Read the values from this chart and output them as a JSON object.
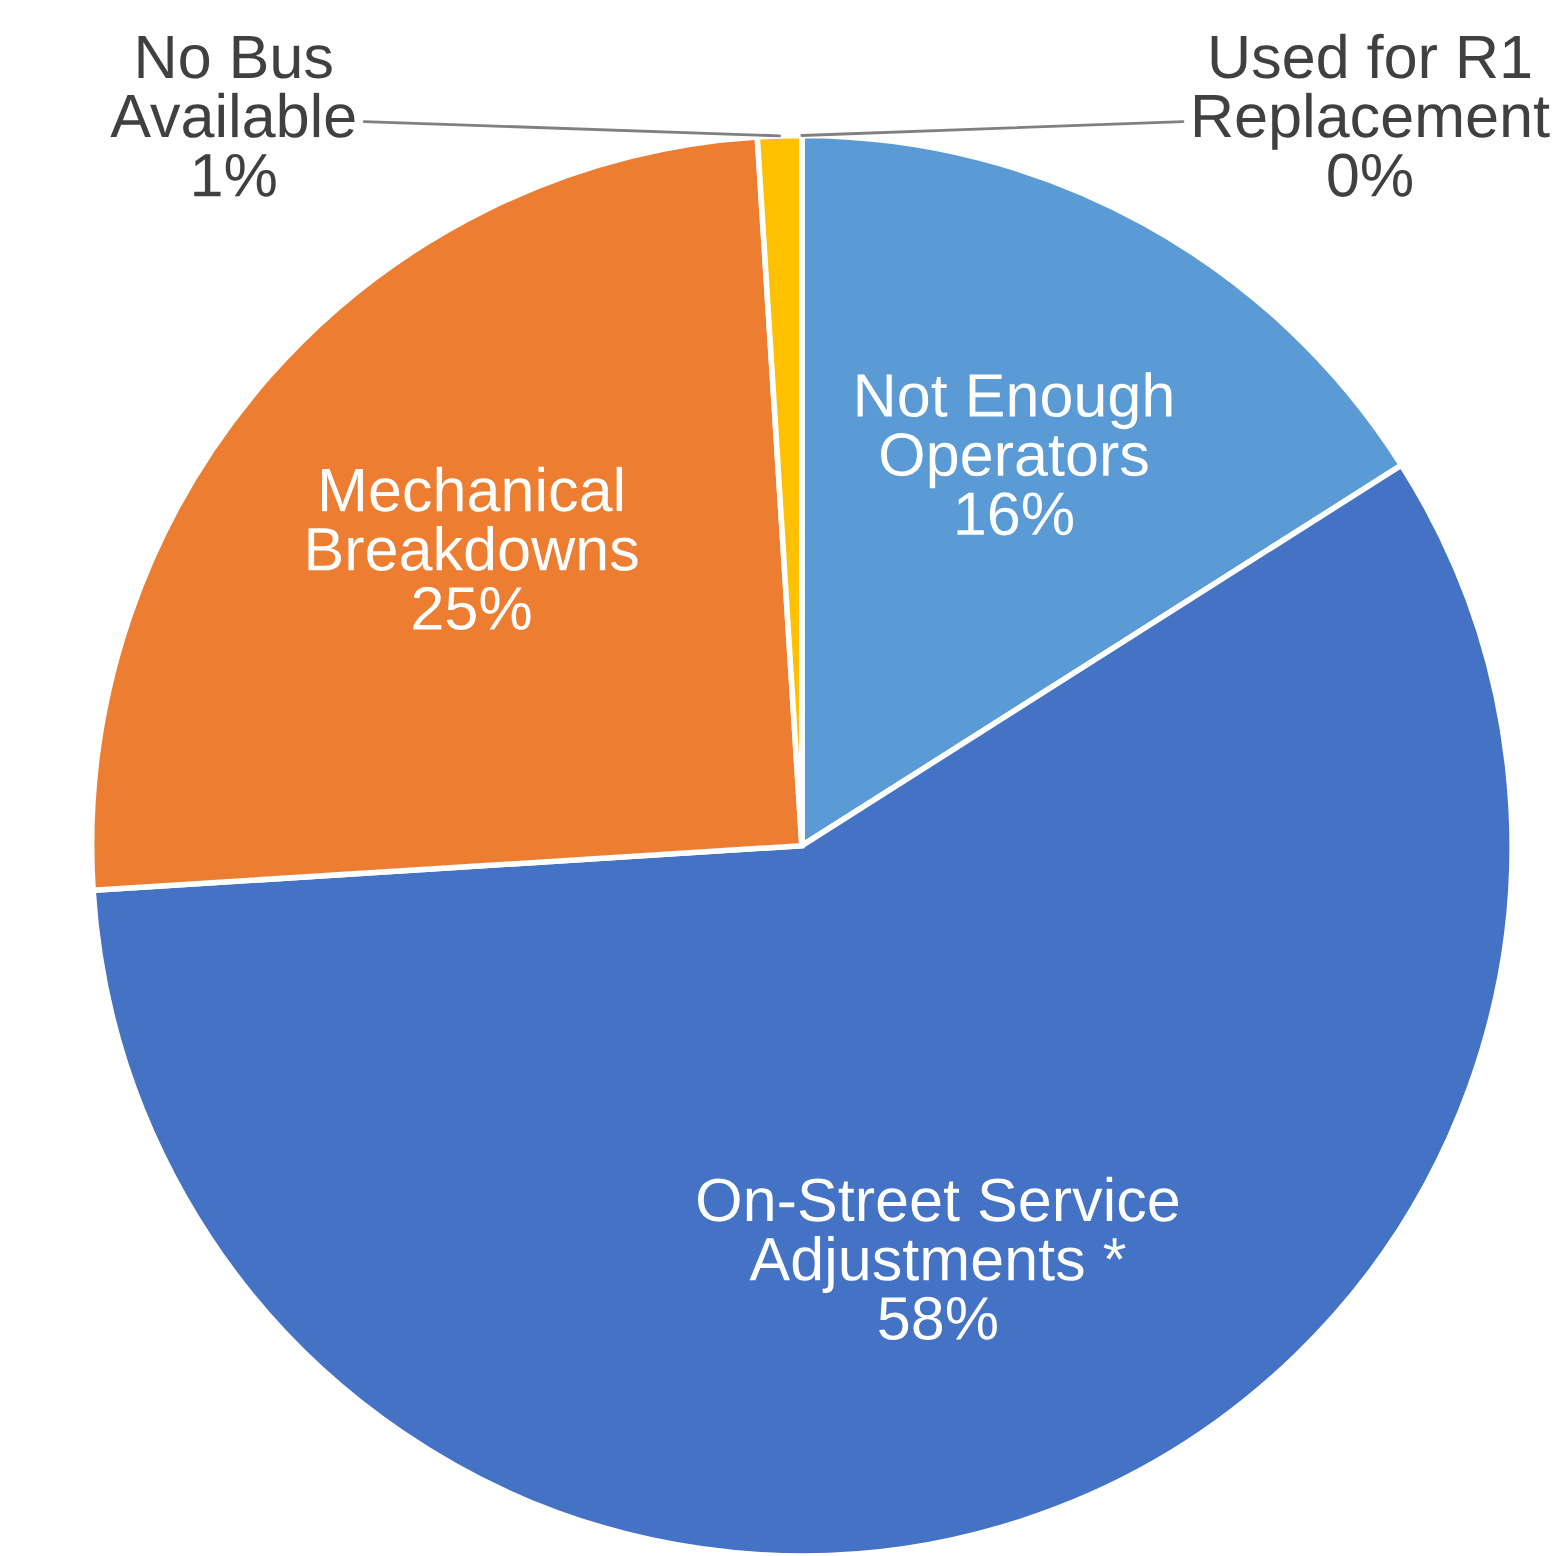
{
  "chart_data": {
    "type": "pie",
    "categories": [
      "Not Enough\nOperators",
      "On-Street Service\nAdjustments *",
      "Mechanical\nBreakdowns",
      "No Bus\nAvailable",
      "Used for R1\nReplacement"
    ],
    "values": [
      16,
      58,
      25,
      1,
      0
    ],
    "value_labels": [
      "16%",
      "58%",
      "25%",
      "1%",
      "0%"
    ],
    "colors": [
      "#5b9bd5",
      "#4472c4",
      "#ed7d31",
      "#ffc000",
      "#a5a5a5"
    ]
  }
}
